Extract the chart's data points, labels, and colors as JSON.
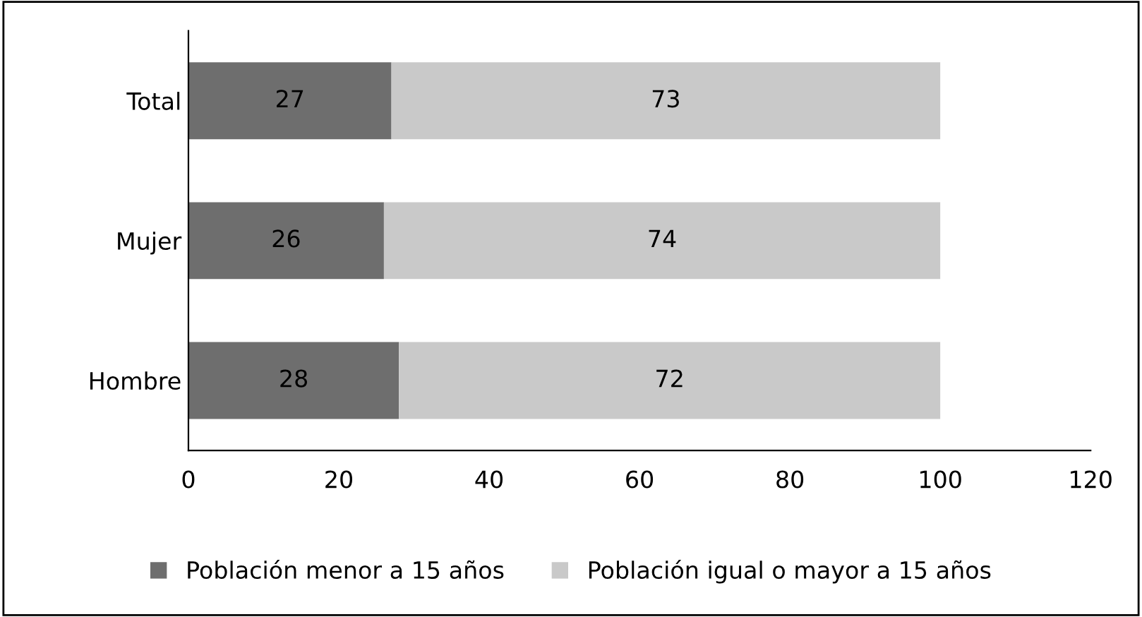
{
  "chart_data": {
    "type": "bar",
    "orientation": "horizontal",
    "stacked": true,
    "categories": [
      "Total",
      "Mujer",
      "Hombre"
    ],
    "series": [
      {
        "name": "Población menor a 15 años",
        "color": "#6e6e6e",
        "values": [
          27,
          26,
          28
        ]
      },
      {
        "name": "Población igual o mayor a 15 años",
        "color": "#c9c9c9",
        "values": [
          73,
          74,
          72
        ]
      }
    ],
    "xlim": [
      0,
      120
    ],
    "xticks": [
      0,
      20,
      40,
      60,
      80,
      100,
      120
    ],
    "data_labels": true,
    "grid": false,
    "legend": "bottom"
  }
}
